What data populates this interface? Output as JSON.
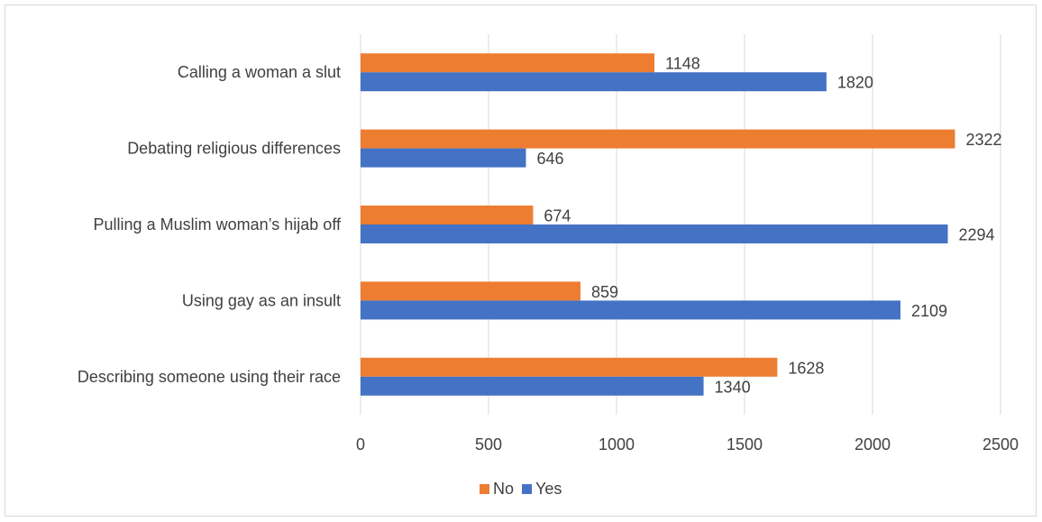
{
  "chart_data": {
    "type": "bar",
    "orientation": "horizontal",
    "title": "",
    "xlabel": "",
    "ylabel": "",
    "categories": [
      "Calling a woman a slut",
      "Debating religious differences",
      "Pulling a Muslim woman’s hijab off",
      "Using gay as an insult",
      "Describing someone using their race"
    ],
    "series": [
      {
        "name": "No",
        "color": "#ED7D31",
        "values": [
          1148,
          2322,
          674,
          859,
          1628
        ]
      },
      {
        "name": "Yes",
        "color": "#4472C4",
        "values": [
          1820,
          646,
          2294,
          2109,
          1340
        ]
      }
    ],
    "xlim": [
      0,
      2500
    ],
    "x_ticks": [
      0,
      500,
      1000,
      1500,
      2000,
      2500
    ],
    "grid": "vertical",
    "legend": "bottom",
    "data_labels": true
  }
}
